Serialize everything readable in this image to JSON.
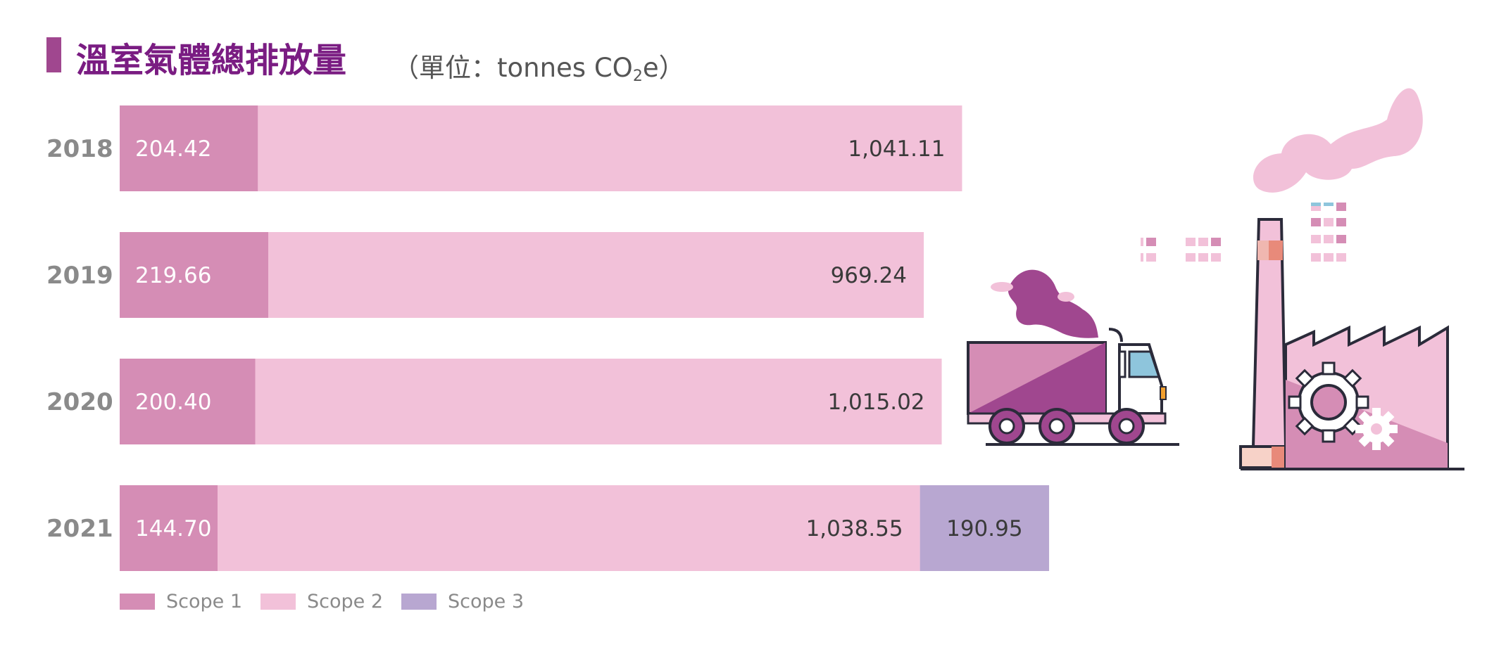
{
  "title": "溫室氣體總排放量",
  "unit_prefix": "（單位：tonnes CO",
  "unit_sub": "2",
  "unit_suffix": "e）",
  "colors": {
    "accent": "#a0478f",
    "title": "#7a1c82",
    "scope1": "#d58db5",
    "scope2": "#f2c1d9",
    "scope3": "#b8a7d1",
    "year_label": "#8a8a8a"
  },
  "chart_data": {
    "type": "bar",
    "orientation": "horizontal",
    "stacked": true,
    "categories": [
      "2018",
      "2019",
      "2020",
      "2021"
    ],
    "series": [
      {
        "name": "Scope 1",
        "values": [
          204.42,
          219.66,
          200.4,
          144.7
        ],
        "labels": [
          "204.42",
          "219.66",
          "200.40",
          "144.70"
        ]
      },
      {
        "name": "Scope 2",
        "values": [
          1041.11,
          969.24,
          1015.02,
          1038.55
        ],
        "labels": [
          "1,041.11",
          "969.24",
          "1,015.02",
          "1,038.55"
        ]
      },
      {
        "name": "Scope 3",
        "values": [
          0,
          0,
          0,
          190.95
        ],
        "labels": [
          "",
          "",
          "",
          "190.95"
        ]
      }
    ],
    "legend_position": "bottom-left",
    "grid": false,
    "axes_visible": false
  },
  "illustrations": [
    {
      "icon": "truck-icon"
    },
    {
      "icon": "factory-icon"
    }
  ]
}
